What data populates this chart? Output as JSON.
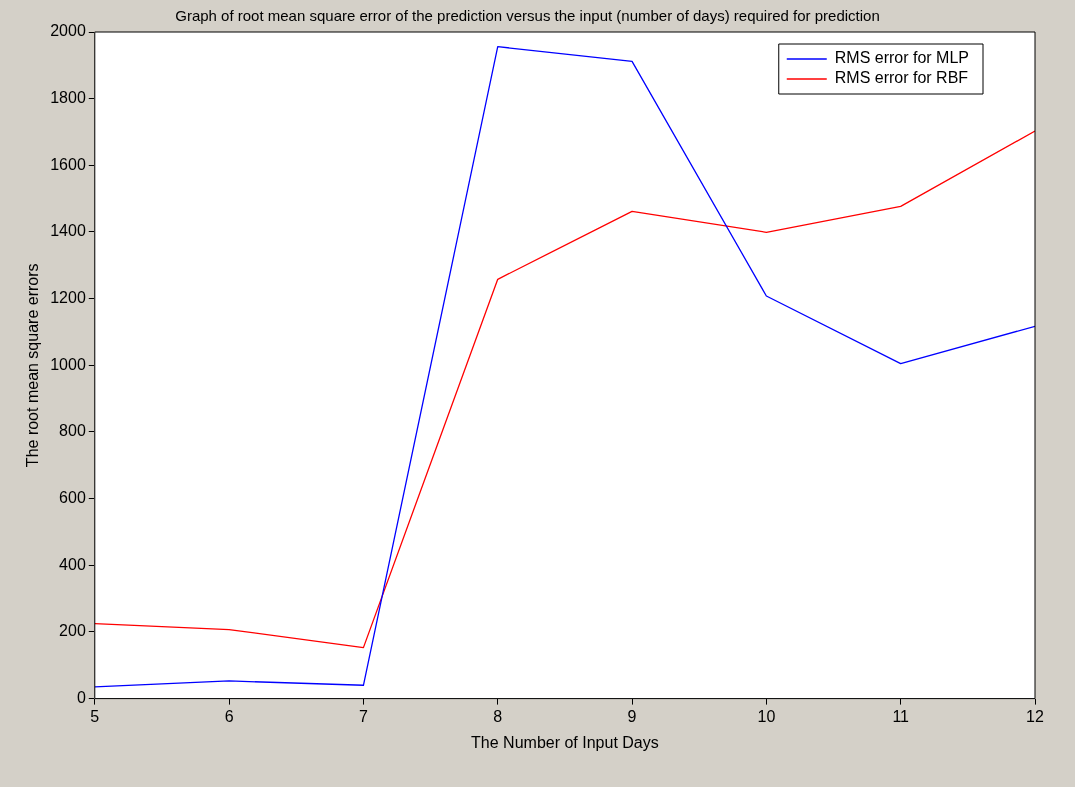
{
  "chart_data": {
    "type": "line",
    "title": "Graph of root mean square error of the prediction versus the input (number of days) required for prediction",
    "xlabel": "The Number of Input Days",
    "ylabel": "The root mean square errors",
    "x": [
      5,
      6,
      7,
      8,
      9,
      10,
      11,
      12
    ],
    "series": [
      {
        "name": "RMS error for MLP",
        "color": "#0000ff",
        "values": [
          35,
          53,
          40,
          1956,
          1912,
          1208,
          1005,
          1117
        ]
      },
      {
        "name": "RMS error for RBF",
        "color": "#ff0000",
        "values": [
          225,
          207,
          153,
          1258,
          1462,
          1399,
          1477,
          1703
        ]
      }
    ],
    "xlim": [
      5,
      12
    ],
    "xticks": [
      5,
      6,
      7,
      8,
      9,
      10,
      11,
      12
    ],
    "ylim": [
      0,
      2000
    ],
    "yticks": [
      0,
      200,
      400,
      600,
      800,
      1000,
      1200,
      1400,
      1600,
      1800,
      2000
    ],
    "grid": false,
    "legend": "top right",
    "marker": "none",
    "line_style": "solid"
  }
}
